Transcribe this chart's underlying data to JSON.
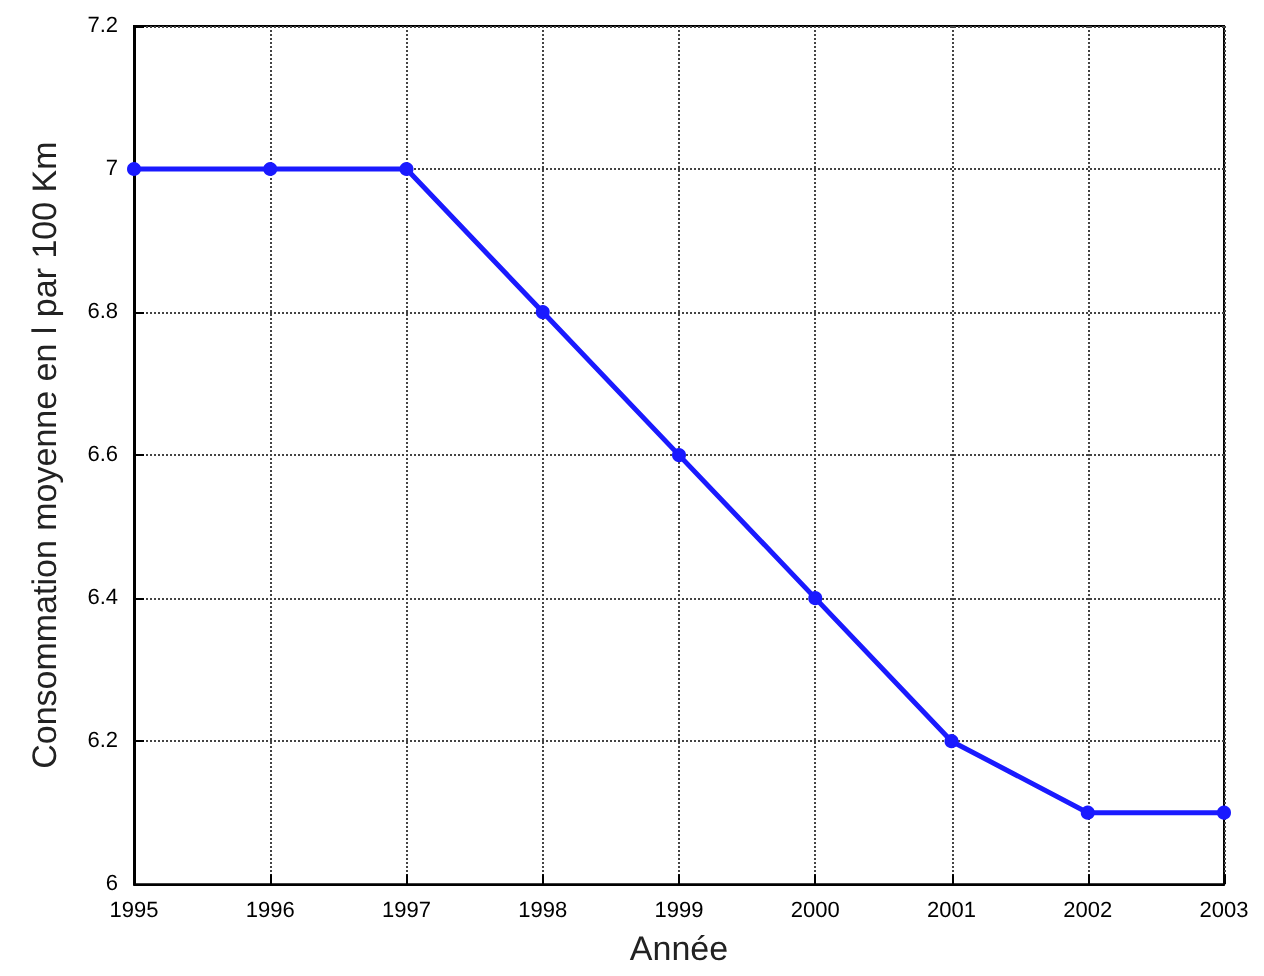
{
  "chart_data": {
    "type": "line",
    "xlabel": "Année",
    "ylabel": "Consommation moyenne en l par 100 Km",
    "x": [
      1995,
      1996,
      1997,
      1998,
      1999,
      2000,
      2001,
      2002,
      2003
    ],
    "series": [
      {
        "color": "#1a1aff",
        "values": [
          7,
          7,
          7,
          6.8,
          6.6,
          6.4,
          6.2,
          6.1,
          6.1
        ]
      }
    ],
    "xlim": [
      1995,
      2003
    ],
    "xticks": [
      1995,
      1996,
      1997,
      1998,
      1999,
      2000,
      2001,
      2002,
      2003
    ],
    "ylim": [
      6,
      7.2
    ],
    "yticks": [
      6,
      6.2,
      6.4,
      6.6,
      6.8,
      7,
      7.2
    ],
    "grid": true,
    "marker": "circle",
    "line_style": "solid"
  }
}
